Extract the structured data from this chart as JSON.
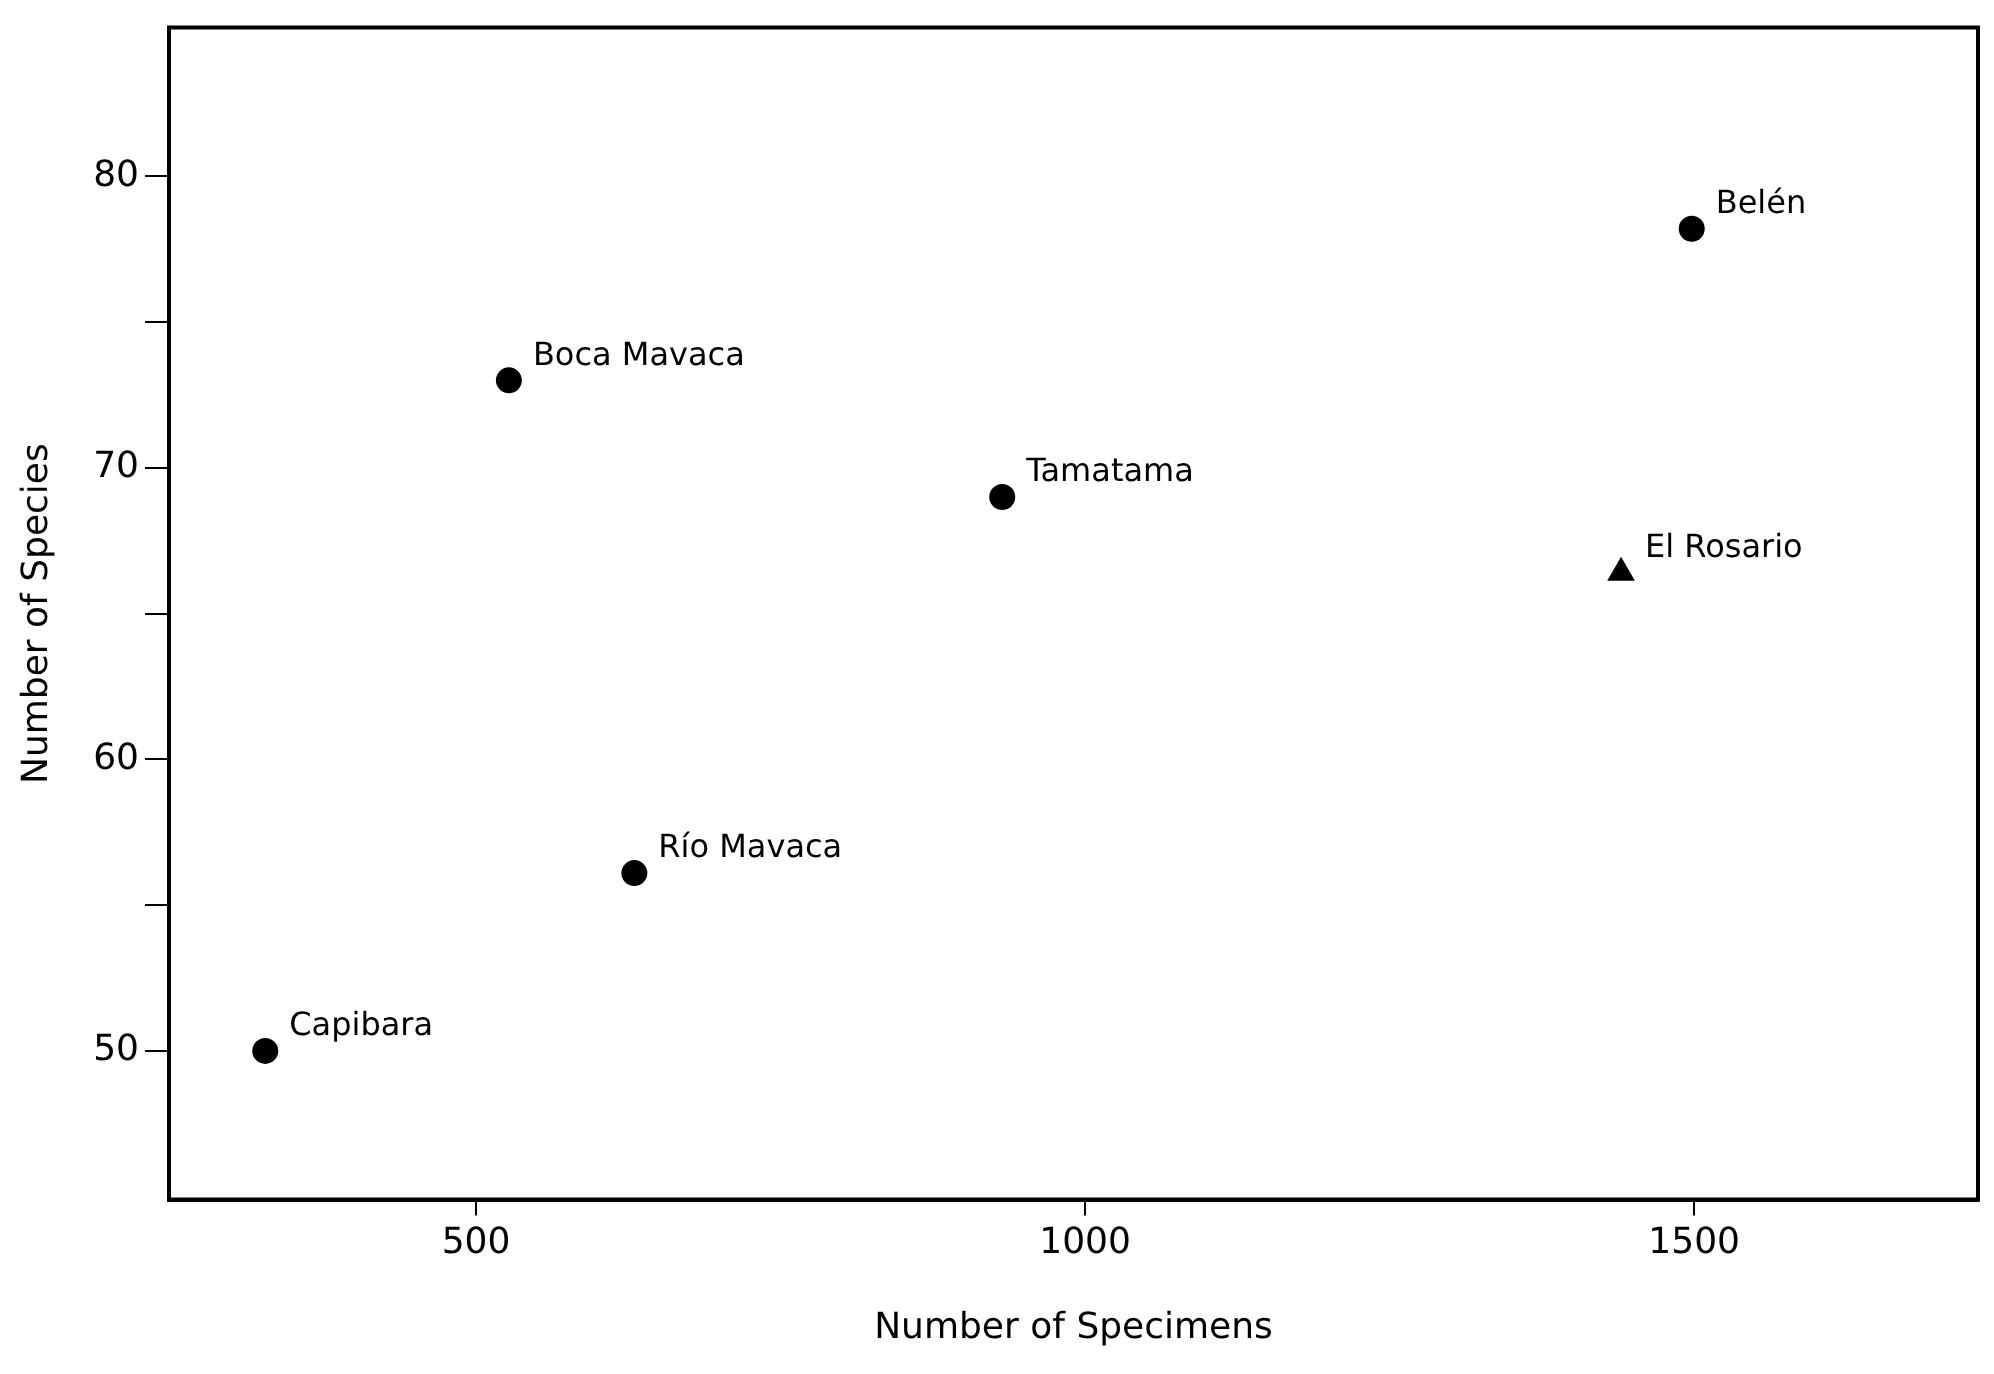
{
  "chart_data": {
    "type": "scatter",
    "xlabel": "Number of Specimens",
    "ylabel": "Number of Species",
    "series": [
      {
        "color": "#000000",
        "marker": "circle",
        "x": [
          327,
          527,
          630,
          932,
          1498
        ],
        "values": [
          50,
          73.0,
          56.1,
          69.0,
          78.2
        ]
      },
      {
        "color": "#000000",
        "marker": "triangle",
        "x": [
          1440
        ],
        "values": [
          66.4
        ]
      }
    ],
    "annotations": [
      {
        "text": "Capibara",
        "x": 327,
        "y": 50
      },
      {
        "text": "Boca Mavaca",
        "x": 527,
        "y": 73.0
      },
      {
        "text": "Río Mavaca",
        "x": 630,
        "y": 56.1
      },
      {
        "text": "Tamatama",
        "x": 932,
        "y": 69.0
      },
      {
        "text": "El Rosario",
        "x": 1440,
        "y": 66.4
      },
      {
        "text": "Belén",
        "x": 1498,
        "y": 78.2
      }
    ],
    "xlim": [
      248,
      1733
    ],
    "xticks": [
      500,
      1000,
      1500
    ],
    "ylim": [
      44.9,
      85.1
    ],
    "yticks": [
      50,
      {
        "value": 55,
        "label": null
      },
      60,
      {
        "value": 65,
        "label": null
      },
      70,
      {
        "value": 75,
        "label": null
      },
      80
    ],
    "grid": false,
    "legend": false
  }
}
